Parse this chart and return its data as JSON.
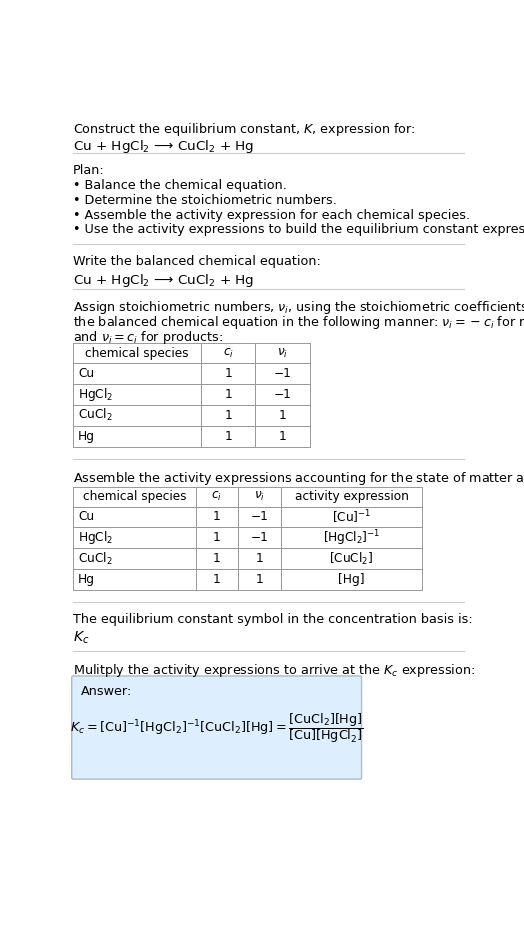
{
  "title_line1": "Construct the equilibrium constant, $K$, expression for:",
  "title_line2": "Cu + HgCl$_2$ ⟶ CuCl$_2$ + Hg",
  "plan_header": "Plan:",
  "plan_bullets": [
    "• Balance the chemical equation.",
    "• Determine the stoichiometric numbers.",
    "• Assemble the activity expression for each chemical species.",
    "• Use the activity expressions to build the equilibrium constant expression."
  ],
  "section2_header": "Write the balanced chemical equation:",
  "section2_eq": "Cu + HgCl$_2$ ⟶ CuCl$_2$ + Hg",
  "section3_text1": "Assign stoichiometric numbers, $\\nu_i$, using the stoichiometric coefficients, $c_i$, from",
  "section3_text2": "the balanced chemical equation in the following manner: $\\nu_i = -c_i$ for reactants",
  "section3_text3": "and $\\nu_i = c_i$ for products:",
  "table1_headers": [
    "chemical species",
    "$c_i$",
    "$\\nu_i$"
  ],
  "table1_rows": [
    [
      "Cu",
      "1",
      "−1"
    ],
    [
      "HgCl$_2$",
      "1",
      "−1"
    ],
    [
      "CuCl$_2$",
      "1",
      "1"
    ],
    [
      "Hg",
      "1",
      "1"
    ]
  ],
  "section4_header": "Assemble the activity expressions accounting for the state of matter and $\\nu_i$:",
  "table2_headers": [
    "chemical species",
    "$c_i$",
    "$\\nu_i$",
    "activity expression"
  ],
  "table2_rows": [
    [
      "Cu",
      "1",
      "−1",
      "[Cu]$^{-1}$"
    ],
    [
      "HgCl$_2$",
      "1",
      "−1",
      "[HgCl$_2$]$^{-1}$"
    ],
    [
      "CuCl$_2$",
      "1",
      "1",
      "[CuCl$_2$]"
    ],
    [
      "Hg",
      "1",
      "1",
      "[Hg]"
    ]
  ],
  "section5_header": "The equilibrium constant symbol in the concentration basis is:",
  "section5_symbol": "$K_c$",
  "section6_header": "Mulitply the activity expressions to arrive at the $K_c$ expression:",
  "answer_label": "Answer:",
  "bg_color": "#ffffff",
  "text_color": "#000000",
  "table_border_color": "#999999",
  "answer_box_facecolor": "#ddeeff",
  "answer_box_edgecolor": "#aabbcc",
  "font_size": 9.2,
  "fig_width": 5.24,
  "fig_height": 9.49
}
